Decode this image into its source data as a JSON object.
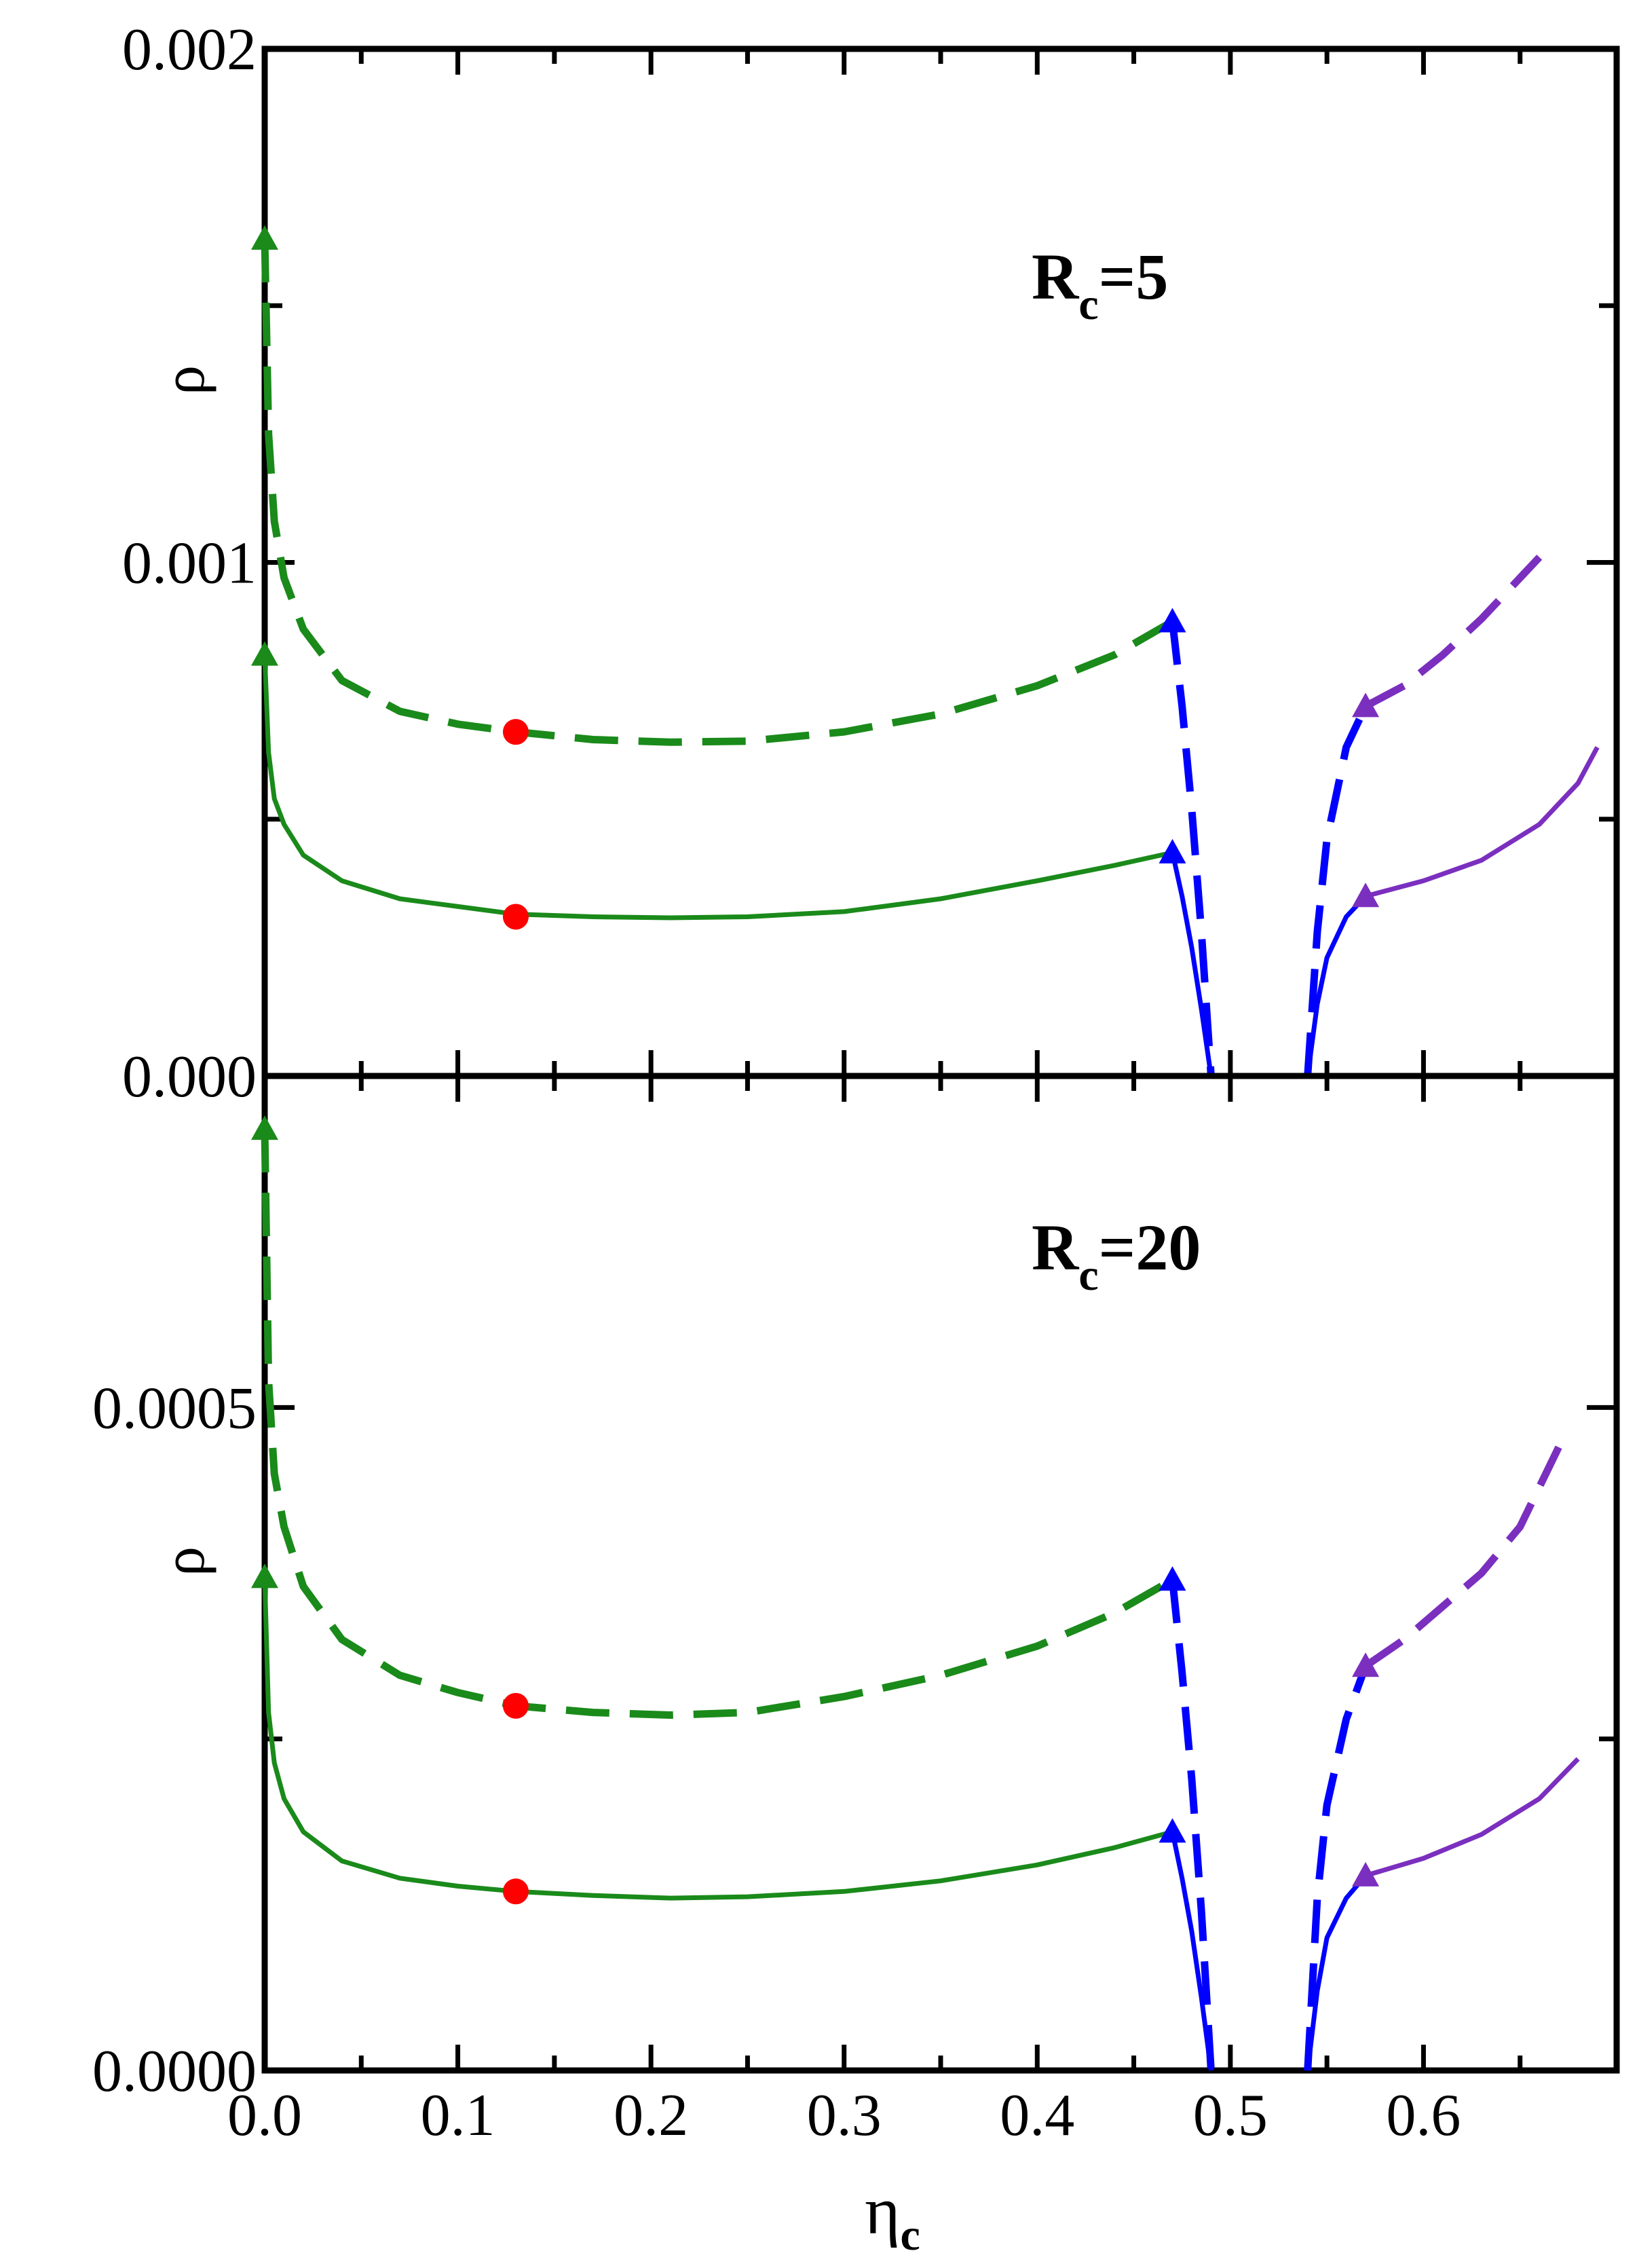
{
  "chart_data": [
    {
      "type": "line",
      "panel": "top",
      "annotation": {
        "main": "R",
        "sub": "c",
        "rest": "=5"
      },
      "ylabel": "ρ",
      "xlabel": "",
      "xlim": [
        0.0,
        0.7
      ],
      "ylim": [
        0.0,
        0.002
      ],
      "yticks": [
        0.0,
        0.001,
        0.002
      ],
      "ytick_labels": [
        "0.000",
        "0.001",
        "0.002"
      ],
      "grid": false,
      "series": [
        {
          "color": "#1a8a1a",
          "dash": true,
          "x": [
            0.0,
            0.002,
            0.005,
            0.01,
            0.02,
            0.04,
            0.07,
            0.1,
            0.13,
            0.17,
            0.21,
            0.25,
            0.3,
            0.35,
            0.4,
            0.44,
            0.47
          ],
          "y": [
            0.00163,
            0.00125,
            0.00108,
            0.00097,
            0.00087,
            0.00077,
            0.00071,
            0.000685,
            0.00067,
            0.000655,
            0.00065,
            0.000652,
            0.00067,
            0.000705,
            0.00076,
            0.00082,
            0.000885
          ]
        },
        {
          "color": "#1a8a1a",
          "dash": false,
          "x": [
            0.0,
            0.002,
            0.005,
            0.01,
            0.02,
            0.04,
            0.07,
            0.1,
            0.13,
            0.17,
            0.21,
            0.25,
            0.3,
            0.35,
            0.4,
            0.44,
            0.47
          ],
          "y": [
            0.00082,
            0.00063,
            0.00054,
            0.00049,
            0.00043,
            0.00038,
            0.000345,
            0.00033,
            0.000315,
            0.00031,
            0.000308,
            0.00031,
            0.00032,
            0.000345,
            0.00038,
            0.00041,
            0.000435
          ]
        },
        {
          "color": "#0000ff",
          "dash": true,
          "x": [
            0.47,
            0.475,
            0.48,
            0.485,
            0.49
          ],
          "y": [
            0.000885,
            0.00072,
            0.00052,
            0.00028,
            0.0
          ]
        },
        {
          "color": "#0000ff",
          "dash": false,
          "x": [
            0.47,
            0.475,
            0.48,
            0.485,
            0.49
          ],
          "y": [
            0.000435,
            0.00035,
            0.00025,
            0.00013,
            0.0
          ]
        },
        {
          "color": "#0000ff",
          "dash": true,
          "x": [
            0.54,
            0.545,
            0.55,
            0.56,
            0.57
          ],
          "y": [
            0.0,
            0.00028,
            0.00046,
            0.00064,
            0.00072
          ]
        },
        {
          "color": "#0000ff",
          "dash": false,
          "x": [
            0.54,
            0.545,
            0.55,
            0.56,
            0.57
          ],
          "y": [
            0.0,
            0.00014,
            0.00023,
            0.00031,
            0.00035
          ]
        },
        {
          "color": "#7b2fbf",
          "dash": true,
          "x": [
            0.57,
            0.59,
            0.61,
            0.63,
            0.65,
            0.66
          ],
          "y": [
            0.00072,
            0.00076,
            0.00082,
            0.00089,
            0.00097,
            0.00101
          ]
        },
        {
          "color": "#7b2fbf",
          "dash": false,
          "x": [
            0.57,
            0.6,
            0.63,
            0.66,
            0.68,
            0.69
          ],
          "y": [
            0.00035,
            0.00038,
            0.00042,
            0.00049,
            0.00057,
            0.00064
          ]
        }
      ],
      "markers": [
        {
          "shape": "triangle",
          "color": "#1a8a1a",
          "x": 0.0,
          "y": 0.00163
        },
        {
          "shape": "triangle",
          "color": "#1a8a1a",
          "x": 0.0,
          "y": 0.00082
        },
        {
          "shape": "triangle",
          "color": "#0000ff",
          "x": 0.47,
          "y": 0.000885
        },
        {
          "shape": "triangle",
          "color": "#0000ff",
          "x": 0.47,
          "y": 0.000435
        },
        {
          "shape": "triangle",
          "color": "#7b2fbf",
          "x": 0.57,
          "y": 0.00072
        },
        {
          "shape": "triangle",
          "color": "#7b2fbf",
          "x": 0.57,
          "y": 0.00035
        },
        {
          "shape": "circle",
          "color": "#ff0000",
          "x": 0.13,
          "y": 0.00067
        },
        {
          "shape": "circle",
          "color": "#ff0000",
          "x": 0.13,
          "y": 0.00031
        }
      ]
    },
    {
      "type": "line",
      "panel": "bottom",
      "annotation": {
        "main": "R",
        "sub": "c",
        "rest": "=20"
      },
      "ylabel": "ρ",
      "xlabel": {
        "main": "η",
        "sub": "c"
      },
      "xlim": [
        0.0,
        0.7
      ],
      "ylim": [
        0.0,
        0.00075
      ],
      "yticks": [
        0.0,
        0.0005
      ],
      "ytick_labels": [
        "0.0000",
        "0.0005"
      ],
      "xticks": [
        0.0,
        0.1,
        0.2,
        0.3,
        0.4,
        0.5,
        0.6
      ],
      "xtick_labels": [
        "0.0",
        "0.1",
        "0.2",
        "0.3",
        "0.4",
        "0.5",
        "0.6"
      ],
      "grid": false,
      "series": [
        {
          "color": "#1a8a1a",
          "dash": true,
          "x": [
            0.0,
            0.002,
            0.005,
            0.01,
            0.02,
            0.04,
            0.07,
            0.1,
            0.13,
            0.17,
            0.21,
            0.25,
            0.3,
            0.35,
            0.4,
            0.44,
            0.47
          ],
          "y": [
            0.00071,
            0.00052,
            0.00045,
            0.00041,
            0.000365,
            0.000325,
            0.000298,
            0.000285,
            0.000275,
            0.00027,
            0.000268,
            0.00027,
            0.000282,
            0.000298,
            0.00032,
            0.000345,
            0.00037
          ]
        },
        {
          "color": "#1a8a1a",
          "dash": false,
          "x": [
            0.0,
            0.002,
            0.005,
            0.01,
            0.02,
            0.04,
            0.07,
            0.1,
            0.13,
            0.17,
            0.21,
            0.25,
            0.3,
            0.35,
            0.4,
            0.44,
            0.47
          ],
          "y": [
            0.000372,
            0.00027,
            0.000232,
            0.000205,
            0.00018,
            0.000158,
            0.000145,
            0.000139,
            0.000135,
            0.000132,
            0.00013,
            0.000131,
            0.000135,
            0.000143,
            0.000155,
            0.000168,
            0.00018
          ]
        },
        {
          "color": "#0000ff",
          "dash": true,
          "x": [
            0.47,
            0.475,
            0.48,
            0.485,
            0.49
          ],
          "y": [
            0.00037,
            0.0003,
            0.00022,
            0.00012,
            0.0
          ]
        },
        {
          "color": "#0000ff",
          "dash": false,
          "x": [
            0.47,
            0.475,
            0.48,
            0.485,
            0.49
          ],
          "y": [
            0.00018,
            0.000145,
            0.000105,
            5.5e-05,
            0.0
          ]
        },
        {
          "color": "#0000ff",
          "dash": true,
          "x": [
            0.54,
            0.545,
            0.55,
            0.56,
            0.57
          ],
          "y": [
            0.0,
            0.00013,
            0.0002,
            0.000265,
            0.000305
          ]
        },
        {
          "color": "#0000ff",
          "dash": false,
          "x": [
            0.54,
            0.545,
            0.55,
            0.56,
            0.57
          ],
          "y": [
            0.0,
            6e-05,
            0.0001,
            0.00013,
            0.000147
          ]
        },
        {
          "color": "#7b2fbf",
          "dash": true,
          "x": [
            0.57,
            0.59,
            0.61,
            0.63,
            0.65,
            0.67
          ],
          "y": [
            0.000305,
            0.000325,
            0.00035,
            0.000375,
            0.00041,
            0.00047
          ]
        },
        {
          "color": "#7b2fbf",
          "dash": false,
          "x": [
            0.57,
            0.6,
            0.63,
            0.66,
            0.68
          ],
          "y": [
            0.000147,
            0.00016,
            0.000178,
            0.000205,
            0.000235
          ]
        }
      ],
      "markers": [
        {
          "shape": "triangle",
          "color": "#1a8a1a",
          "x": 0.0,
          "y": 0.00071
        },
        {
          "shape": "triangle",
          "color": "#1a8a1a",
          "x": 0.0,
          "y": 0.000372
        },
        {
          "shape": "triangle",
          "color": "#0000ff",
          "x": 0.47,
          "y": 0.00037
        },
        {
          "shape": "triangle",
          "color": "#0000ff",
          "x": 0.47,
          "y": 0.00018
        },
        {
          "shape": "triangle",
          "color": "#7b2fbf",
          "x": 0.57,
          "y": 0.000305
        },
        {
          "shape": "triangle",
          "color": "#7b2fbf",
          "x": 0.57,
          "y": 0.000147
        },
        {
          "shape": "circle",
          "color": "#ff0000",
          "x": 0.13,
          "y": 0.000275
        },
        {
          "shape": "circle",
          "color": "#ff0000",
          "x": 0.13,
          "y": 0.000135
        }
      ]
    }
  ]
}
